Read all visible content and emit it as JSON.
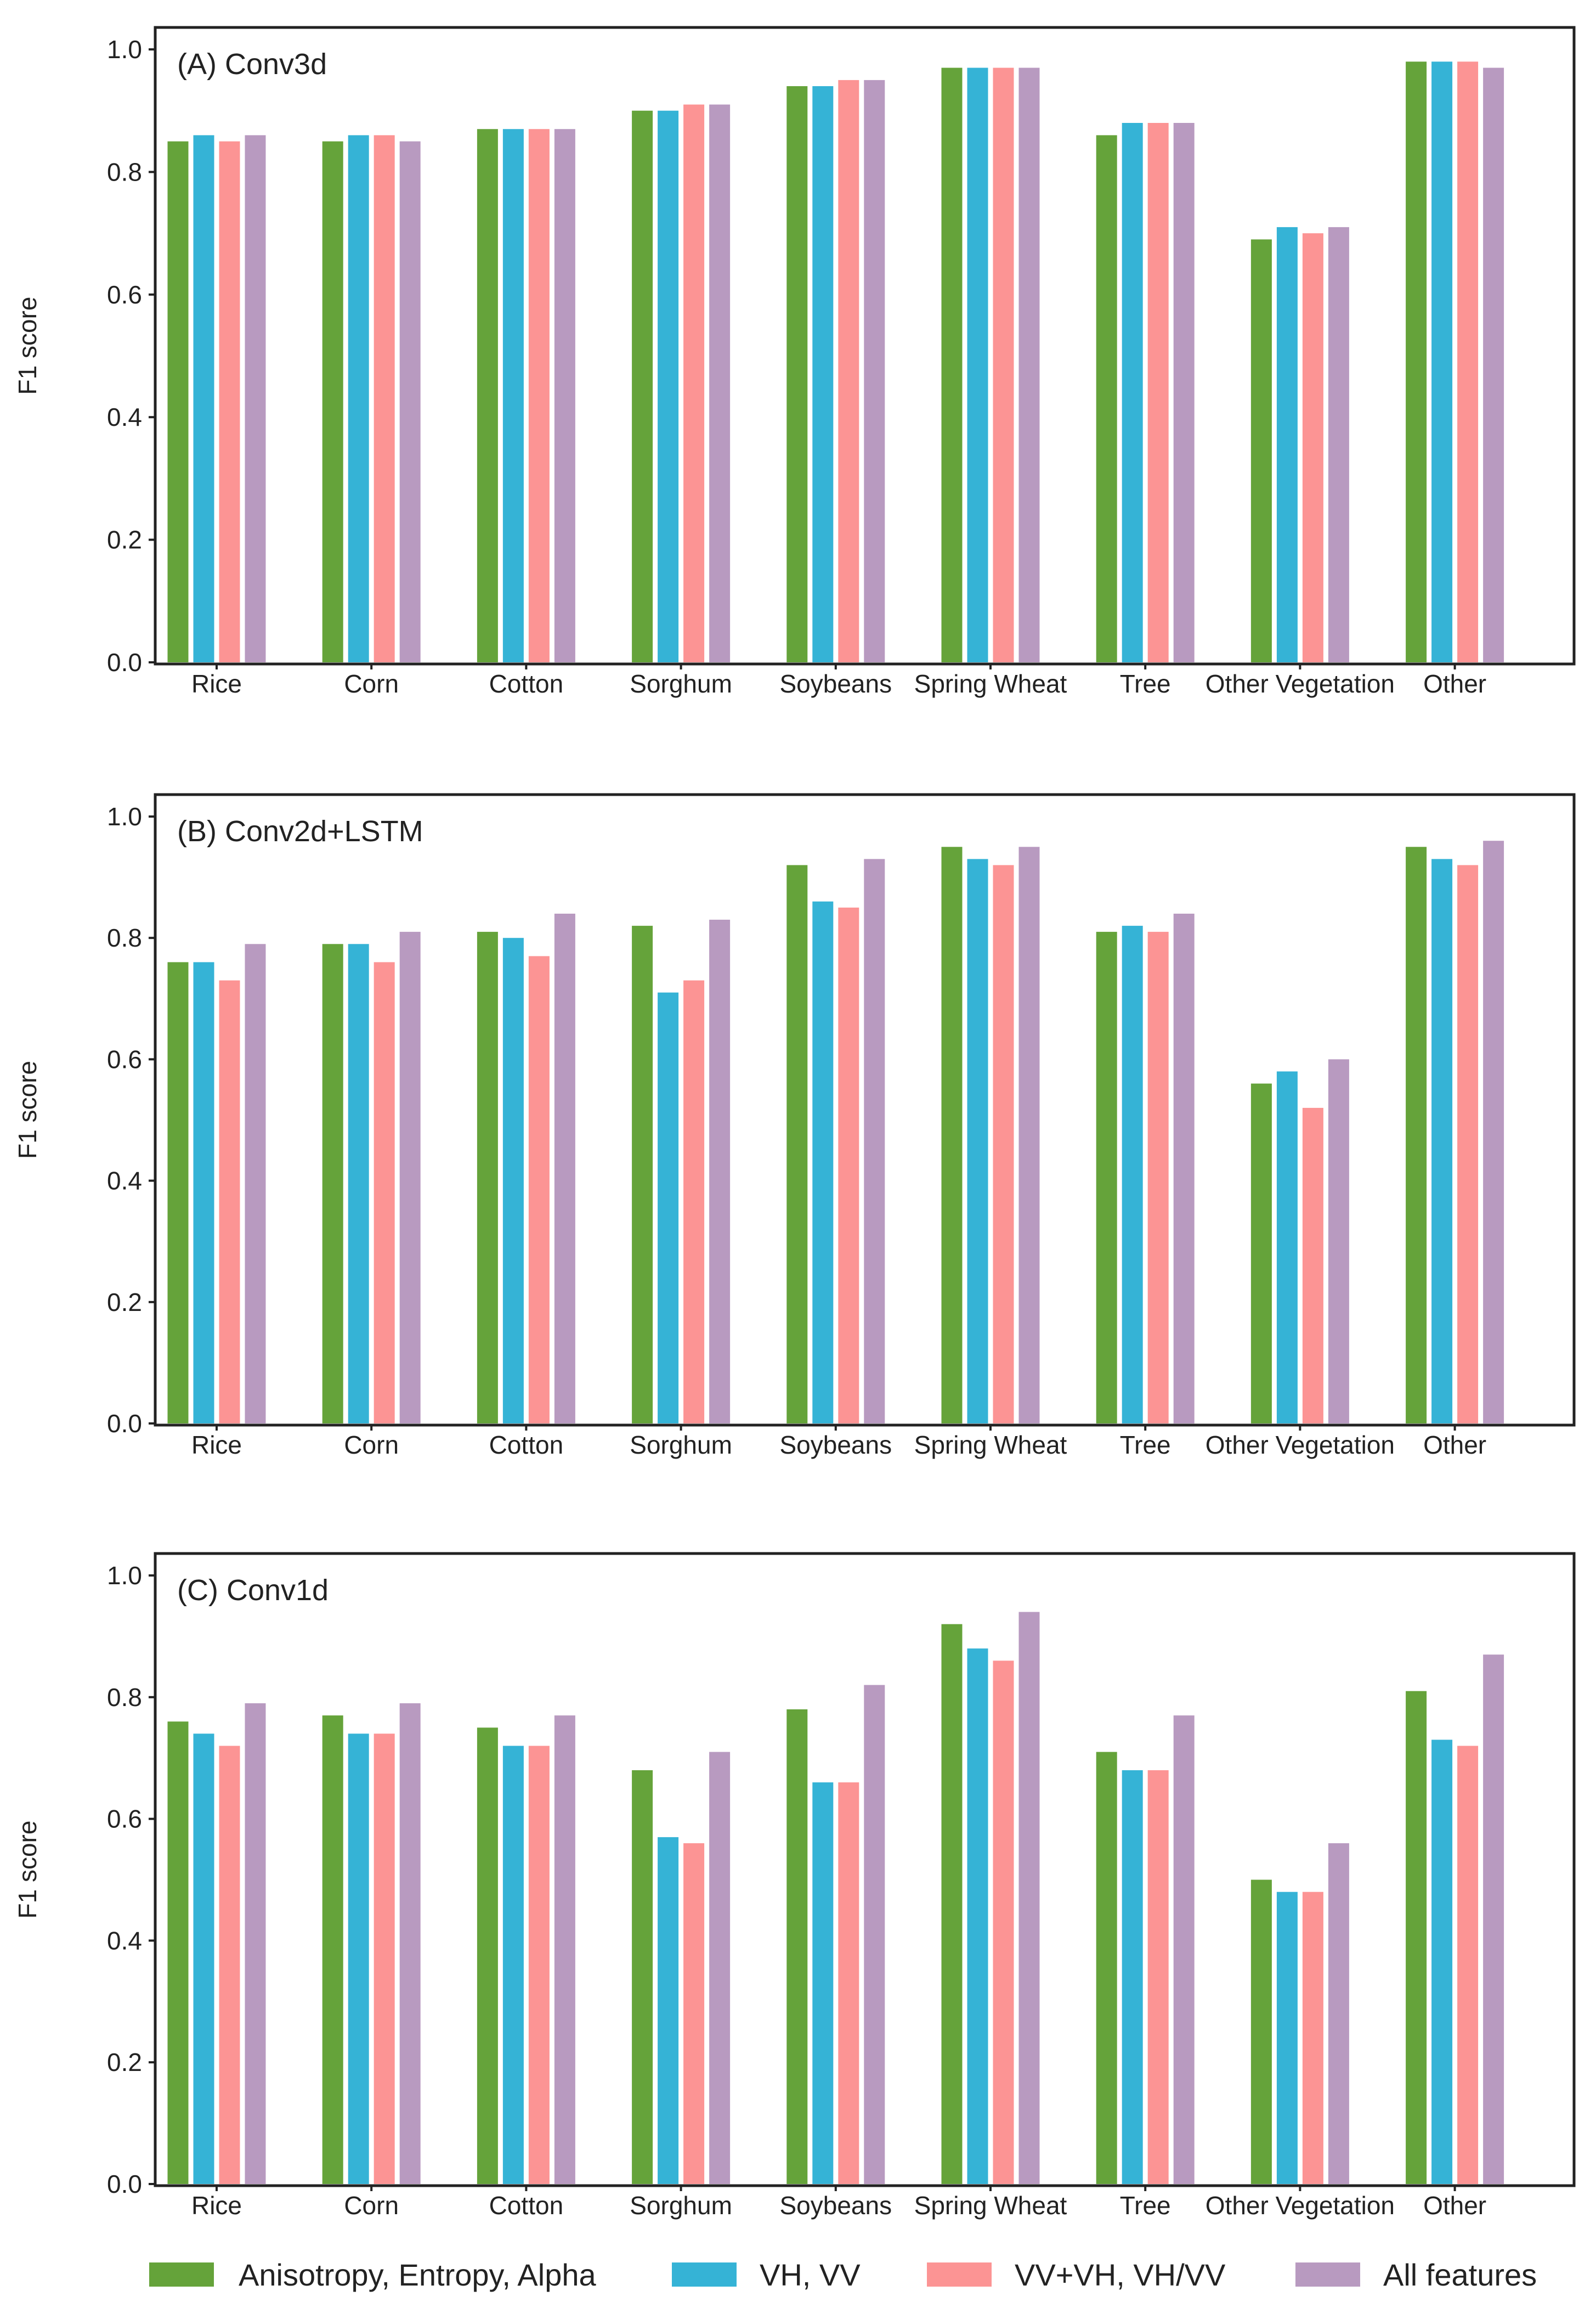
{
  "chart_data": [
    {
      "type": "bar",
      "title": "(A) Conv3d",
      "xlabel": "",
      "ylabel": "F1 score",
      "ylim": [
        0,
        1.0
      ],
      "yticks": [
        "0.0",
        "0.2",
        "0.4",
        "0.6",
        "0.8",
        "1.0"
      ],
      "categories": [
        "Rice",
        "Corn",
        "Cotton",
        "Sorghum",
        "Soybeans",
        "Spring Wheat",
        "Tree",
        "Other Vegetation",
        "Other"
      ],
      "series": [
        {
          "name": "Anisotropy, Entropy, Alpha",
          "values": [
            0.85,
            0.85,
            0.87,
            0.9,
            0.94,
            0.97,
            0.86,
            0.69,
            0.98
          ]
        },
        {
          "name": "VH, VV",
          "values": [
            0.86,
            0.86,
            0.87,
            0.9,
            0.94,
            0.97,
            0.88,
            0.71,
            0.98
          ]
        },
        {
          "name": "VV+VH, VH/VV",
          "values": [
            0.85,
            0.86,
            0.87,
            0.91,
            0.95,
            0.97,
            0.88,
            0.7,
            0.98
          ]
        },
        {
          "name": "All features",
          "values": [
            0.86,
            0.85,
            0.87,
            0.91,
            0.95,
            0.97,
            0.88,
            0.71,
            0.97
          ]
        }
      ]
    },
    {
      "type": "bar",
      "title": "(B) Conv2d+LSTM",
      "xlabel": "",
      "ylabel": "F1 score",
      "ylim": [
        0,
        1.0
      ],
      "yticks": [
        "0.0",
        "0.2",
        "0.4",
        "0.6",
        "0.8",
        "1.0"
      ],
      "categories": [
        "Rice",
        "Corn",
        "Cotton",
        "Sorghum",
        "Soybeans",
        "Spring Wheat",
        "Tree",
        "Other Vegetation",
        "Other"
      ],
      "series": [
        {
          "name": "Anisotropy, Entropy, Alpha",
          "values": [
            0.76,
            0.79,
            0.81,
            0.82,
            0.92,
            0.95,
            0.81,
            0.56,
            0.95
          ]
        },
        {
          "name": "VH, VV",
          "values": [
            0.76,
            0.79,
            0.8,
            0.71,
            0.86,
            0.93,
            0.82,
            0.58,
            0.93
          ]
        },
        {
          "name": "VV+VH, VH/VV",
          "values": [
            0.73,
            0.76,
            0.77,
            0.73,
            0.85,
            0.92,
            0.81,
            0.52,
            0.92
          ]
        },
        {
          "name": "All features",
          "values": [
            0.79,
            0.81,
            0.84,
            0.83,
            0.93,
            0.95,
            0.84,
            0.6,
            0.96
          ]
        }
      ]
    },
    {
      "type": "bar",
      "title": "(C) Conv1d",
      "xlabel": "",
      "ylabel": "F1 score",
      "ylim": [
        0,
        1.0
      ],
      "yticks": [
        "0.0",
        "0.2",
        "0.4",
        "0.6",
        "0.8",
        "1.0"
      ],
      "categories": [
        "Rice",
        "Corn",
        "Cotton",
        "Sorghum",
        "Soybeans",
        "Spring Wheat",
        "Tree",
        "Other Vegetation",
        "Other"
      ],
      "series": [
        {
          "name": "Anisotropy, Entropy, Alpha",
          "values": [
            0.76,
            0.77,
            0.75,
            0.68,
            0.78,
            0.92,
            0.71,
            0.5,
            0.81
          ]
        },
        {
          "name": "VH, VV",
          "values": [
            0.74,
            0.74,
            0.72,
            0.57,
            0.66,
            0.88,
            0.68,
            0.48,
            0.73
          ]
        },
        {
          "name": "VV+VH, VH/VV",
          "values": [
            0.72,
            0.74,
            0.72,
            0.56,
            0.66,
            0.86,
            0.68,
            0.48,
            0.72
          ]
        },
        {
          "name": "All features",
          "values": [
            0.79,
            0.79,
            0.77,
            0.71,
            0.82,
            0.94,
            0.77,
            0.56,
            0.87
          ]
        }
      ]
    }
  ],
  "legend": {
    "items": [
      {
        "label": "Anisotropy, Entropy, Alpha",
        "color": "#65a33a"
      },
      {
        "label": "VH, VV",
        "color": "#35b3d6"
      },
      {
        "label": "VV+VH, VH/VV",
        "color": "#fc9494"
      },
      {
        "label": "All features",
        "color": "#b89ac0"
      }
    ]
  }
}
